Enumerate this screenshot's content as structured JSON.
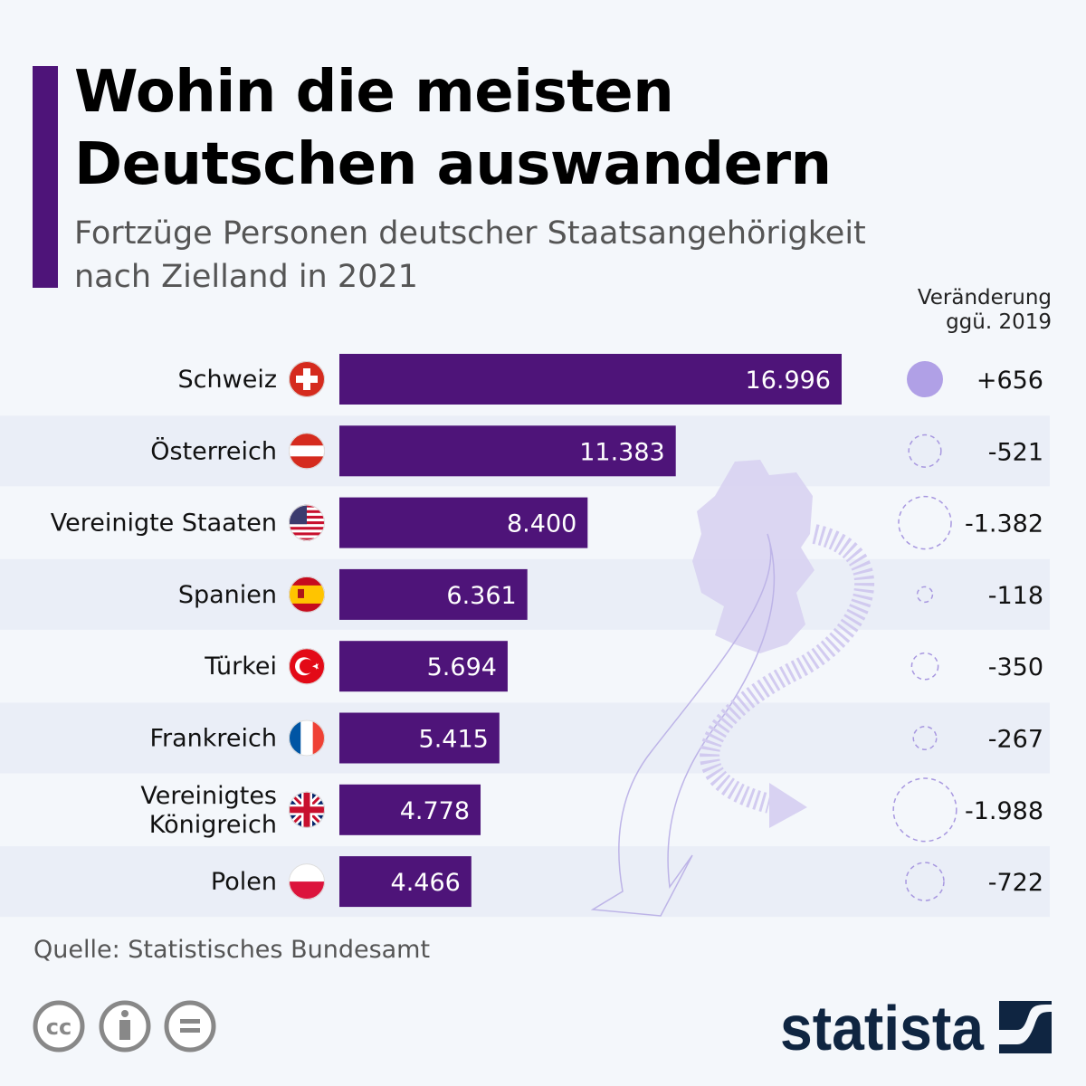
{
  "title_line1": "Wohin die meisten",
  "title_line2": "Deutschen auswandern",
  "subtitle_line1": "Fortzüge Personen deutscher Staatsangehörigkeit",
  "subtitle_line2": "nach Zielland in 2021",
  "change_header_line1": "Veränderung",
  "change_header_line2": "ggü. 2019",
  "source": "Quelle: Statistisches Bundesamt",
  "logo_text": "statista",
  "license_icons": [
    "cc-icon",
    "attribution-icon",
    "no-derivatives-icon"
  ],
  "colors": {
    "bar": "#4e1479",
    "positive_circle": "#b0a0e6",
    "negative_circle": "#a898e0",
    "band": "#eaeef7",
    "logo": "#0f2541"
  },
  "chart_data": {
    "type": "bar",
    "orientation": "horizontal",
    "categories": [
      "Schweiz",
      "Österreich",
      "Vereinigte Staaten",
      "Spanien",
      "Türkei",
      "Frankreich",
      "Vereinigtes Königreich",
      "Polen"
    ],
    "category_lines": [
      [
        "Schweiz"
      ],
      [
        "Österreich"
      ],
      [
        "Vereinigte Staaten"
      ],
      [
        "Spanien"
      ],
      [
        "Türkei"
      ],
      [
        "Frankreich"
      ],
      [
        "Vereinigtes",
        "Königreich"
      ],
      [
        "Polen"
      ]
    ],
    "flags": [
      "ch",
      "at",
      "us",
      "es",
      "tr",
      "fr",
      "gb",
      "pl"
    ],
    "values": [
      16996,
      11383,
      8400,
      6361,
      5694,
      5415,
      4778,
      4466
    ],
    "value_labels": [
      "16.996",
      "11.383",
      "8.400",
      "6.361",
      "5.694",
      "5.415",
      "4.778",
      "4.466"
    ],
    "change_values": [
      656,
      -521,
      -1382,
      -118,
      -350,
      -267,
      -1988,
      -722
    ],
    "change_labels": [
      "+656",
      "-521",
      "-1.382",
      "-118",
      "-350",
      "-267",
      "-1.988",
      "-722"
    ],
    "xlim": [
      0,
      16996
    ]
  }
}
